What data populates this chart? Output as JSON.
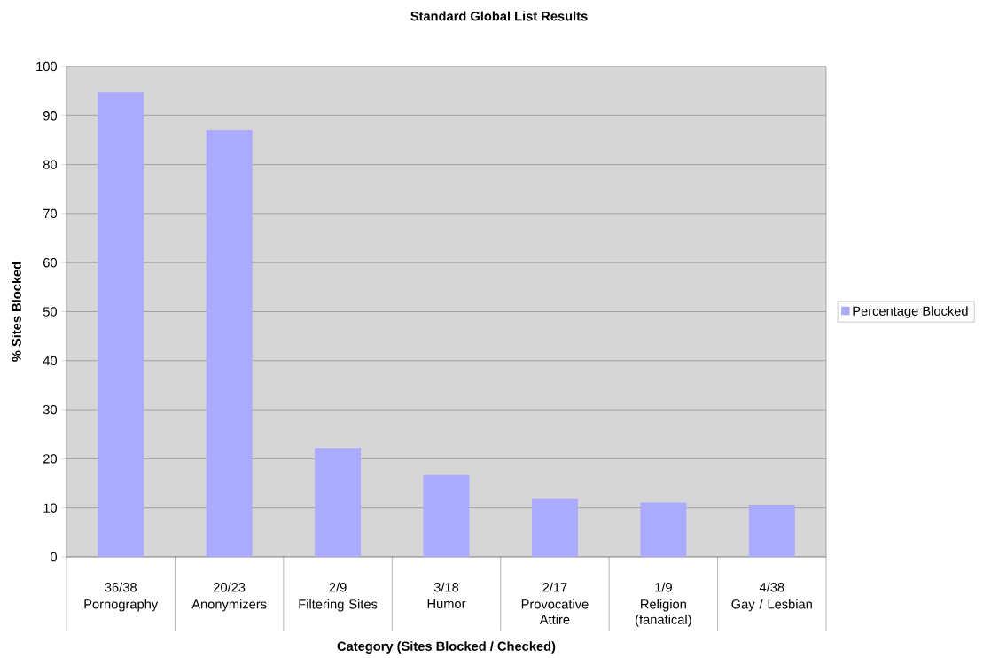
{
  "chart_data": {
    "type": "bar",
    "title": "Standard Global List Results",
    "xlabel": "Category (Sites Blocked / Checked)",
    "ylabel": "% Sites Blocked",
    "categories": [
      "Pornography",
      "Anonymizers",
      "Filtering Sites",
      "Humor",
      "Provocative Attire",
      "Religion (fanatical)",
      "Gay / Lesbian"
    ],
    "series": [
      {
        "name": "Percentage Blocked",
        "color": "#aaaaff",
        "values": [
          94.7,
          87.0,
          22.2,
          16.7,
          11.8,
          11.1,
          10.5
        ]
      }
    ],
    "value_labels": [
      "36/38",
      "20/23",
      "2/9",
      "3/18",
      "2/17",
      "1/9",
      "4/38"
    ],
    "ylim": [
      0,
      100
    ],
    "yticks": [
      0,
      10,
      20,
      30,
      40,
      50,
      60,
      70,
      80,
      90,
      100
    ],
    "grid": "y",
    "legend": "right"
  }
}
